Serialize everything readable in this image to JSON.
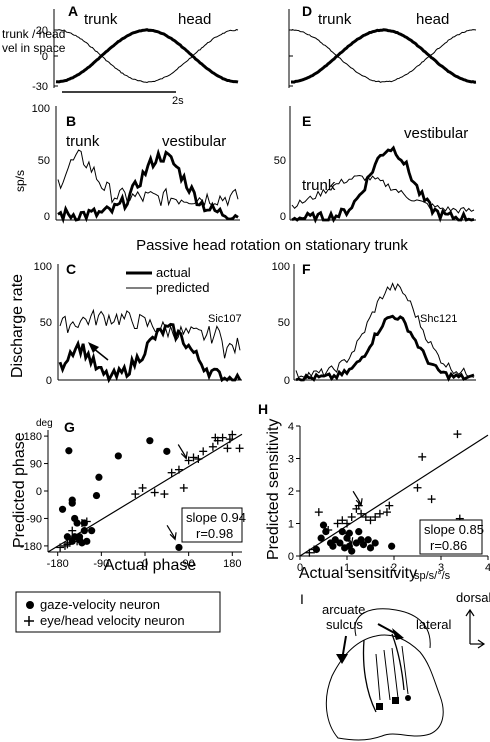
{
  "panels": {
    "A": "A",
    "B": "B",
    "C": "C",
    "D": "D",
    "E": "E",
    "F": "F",
    "G": "G",
    "H": "H",
    "I": "I"
  },
  "colors": {
    "ink": "#000000",
    "background": "#ffffff"
  },
  "row1": {
    "ylabel_line1": "trunk / head",
    "ylabel_line2": "vel in space",
    "yticks": [
      "20",
      "0",
      "-30"
    ],
    "scalebar_label": "2s",
    "trunk_label": "trunk",
    "head_label": "head"
  },
  "row2": {
    "ylabel": "sp/s",
    "yticks": [
      "100",
      "50",
      "0"
    ],
    "trunk_label": "trunk",
    "vestibular_label": "vestibular"
  },
  "middle_title": "Passive head rotation on stationary trunk",
  "row3": {
    "ylabel": "Discharge rate",
    "yticks_C": [
      "100",
      "50",
      "0"
    ],
    "yticks_F": [
      "100",
      "50",
      "0"
    ],
    "legend_actual": "actual",
    "legend_predicted": "predicted",
    "cell_C": "Sic107",
    "cell_F": "Shc121"
  },
  "chart_data": [
    {
      "panel": "G",
      "type": "scatter",
      "xlabel": "Actual phase",
      "ylabel": "Predicted phase",
      "yunit": "deg",
      "xlim": [
        -200,
        200
      ],
      "ylim": [
        -200,
        200
      ],
      "xticks": [
        "-180",
        "-90",
        "0",
        "90",
        "180"
      ],
      "yticks": [
        "180",
        "90",
        "0",
        "-90",
        "-180"
      ],
      "stats": {
        "slope": "slope 0.94",
        "r": "r=0.98"
      },
      "series": [
        {
          "name": "gaze-velocity neuron",
          "marker": "circle",
          "points": [
            [
              -157,
              132
            ],
            [
              -150,
              -30
            ],
            [
              -145,
              -90
            ],
            [
              -140,
              -105
            ],
            [
              -135,
              -160
            ],
            [
              -150,
              -165
            ],
            [
              -160,
              -150
            ],
            [
              -135,
              -150
            ],
            [
              -145,
              -150
            ],
            [
              -130,
              -170
            ],
            [
              -120,
              -165
            ],
            [
              -125,
              -130
            ],
            [
              -110,
              -130
            ],
            [
              -150,
              -40
            ],
            [
              -170,
              -60
            ],
            [
              -95,
              45
            ],
            [
              -100,
              -15
            ],
            [
              -125,
              -105
            ],
            [
              -55,
              115
            ],
            [
              10,
              165
            ],
            [
              45,
              130
            ],
            [
              70,
              -185
            ]
          ]
        },
        {
          "name": "eye/head velocity neuron",
          "marker": "plus",
          "points": [
            [
              -175,
              -185
            ],
            [
              -165,
              -180
            ],
            [
              -160,
              -175
            ],
            [
              -155,
              -170
            ],
            [
              -140,
              -165
            ],
            [
              -150,
              -130
            ],
            [
              -130,
              -105
            ],
            [
              -120,
              -100
            ],
            [
              -20,
              -10
            ],
            [
              -5,
              10
            ],
            [
              20,
              -5
            ],
            [
              40,
              -10
            ],
            [
              55,
              60
            ],
            [
              70,
              70
            ],
            [
              90,
              100
            ],
            [
              100,
              110
            ],
            [
              120,
              130
            ],
            [
              140,
              145
            ],
            [
              150,
              165
            ],
            [
              160,
              175
            ],
            [
              175,
              170
            ],
            [
              180,
              185
            ],
            [
              170,
              140
            ],
            [
              110,
              105
            ],
            [
              80,
              10
            ],
            [
              145,
              175
            ],
            [
              195,
              140
            ]
          ]
        }
      ],
      "arrows": [
        [
          85,
          100
        ],
        [
          62,
          -165
        ]
      ]
    },
    {
      "panel": "H",
      "type": "scatter",
      "xlabel": "Actual sensitivity",
      "ylabel": "Predicted sensitivity",
      "xunit": "sp/s/°/s",
      "xlim": [
        0,
        4
      ],
      "ylim": [
        0,
        4
      ],
      "xticks": [
        "0",
        "1",
        "2",
        "3",
        "4"
      ],
      "yticks": [
        "4",
        "3",
        "2",
        "1",
        "0"
      ],
      "stats": {
        "slope": "slope 0.85",
        "r": "r=0.86"
      },
      "series": [
        {
          "name": "gaze-velocity neuron",
          "marker": "circle",
          "points": [
            [
              0.35,
              0.2
            ],
            [
              0.45,
              0.55
            ],
            [
              0.55,
              0.75
            ],
            [
              0.5,
              0.95
            ],
            [
              0.65,
              0.4
            ],
            [
              0.75,
              0.5
            ],
            [
              0.7,
              0.3
            ],
            [
              0.85,
              0.4
            ],
            [
              0.9,
              0.75
            ],
            [
              0.95,
              0.25
            ],
            [
              1.0,
              0.55
            ],
            [
              1.05,
              0.3
            ],
            [
              1.1,
              0.15
            ],
            [
              1.2,
              0.4
            ],
            [
              1.3,
              0.5
            ],
            [
              1.35,
              0.35
            ],
            [
              1.45,
              0.5
            ],
            [
              1.5,
              0.25
            ],
            [
              1.6,
              0.4
            ],
            [
              1.25,
              0.75
            ],
            [
              1.95,
              0.3
            ],
            [
              1.05,
              0.7
            ]
          ]
        },
        {
          "name": "eye/head velocity neuron",
          "marker": "plus",
          "points": [
            [
              0.2,
              0.1
            ],
            [
              0.3,
              0.2
            ],
            [
              0.4,
              1.35
            ],
            [
              0.6,
              0.8
            ],
            [
              0.8,
              1.0
            ],
            [
              0.9,
              1.1
            ],
            [
              1.0,
              1.0
            ],
            [
              1.1,
              1.2
            ],
            [
              1.2,
              1.45
            ],
            [
              1.3,
              1.3
            ],
            [
              1.4,
              1.2
            ],
            [
              1.5,
              1.1
            ],
            [
              1.6,
              1.2
            ],
            [
              1.7,
              1.3
            ],
            [
              1.85,
              1.35
            ],
            [
              1.9,
              1.55
            ],
            [
              2.5,
              2.1
            ],
            [
              2.6,
              3.05
            ],
            [
              2.8,
              1.75
            ],
            [
              3.35,
              3.75
            ],
            [
              3.4,
              1.15
            ],
            [
              1.25,
              1.55
            ]
          ]
        }
      ],
      "arrows": [
        [
          1.3,
          1.5
        ],
        [
          1.1,
          0.3
        ]
      ]
    }
  ],
  "legend": {
    "gaze": "gaze-velocity neuron",
    "eyehead": "eye/head velocity neuron"
  },
  "panelI": {
    "arcuate_line1": "arcuate",
    "arcuate_line2": "sulcus",
    "dorsal": "dorsal",
    "lateral": "lateral"
  }
}
